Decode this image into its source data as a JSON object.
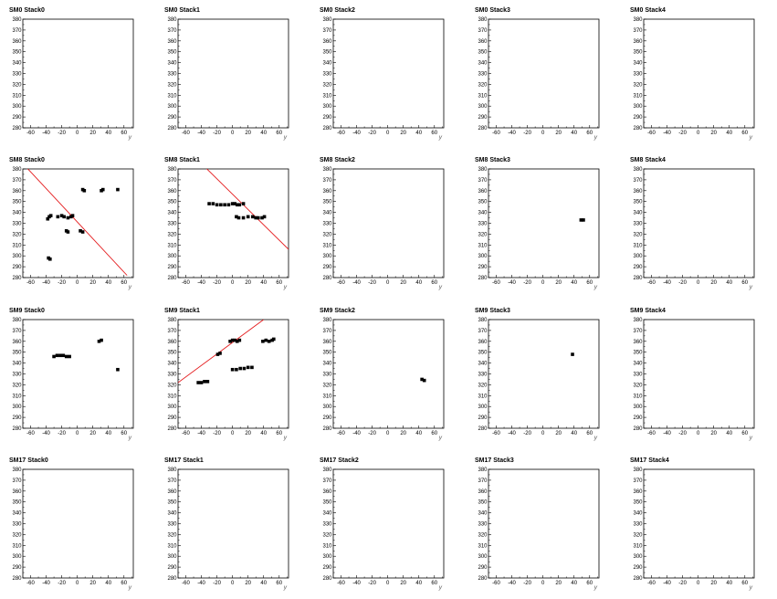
{
  "chart_data": {
    "type": "scatter",
    "xlabel": "y",
    "ylabel": "",
    "xlim": [
      -70,
      72
    ],
    "ylim": [
      280,
      380
    ],
    "xticks": [
      -60,
      -40,
      -20,
      0,
      20,
      40,
      60
    ],
    "yticks": [
      280,
      290,
      300,
      310,
      320,
      330,
      340,
      350,
      360,
      370,
      380
    ],
    "grid": false,
    "panels": [
      {
        "title": "SM0 Stack0",
        "points": [],
        "lines": []
      },
      {
        "title": "SM0 Stack1",
        "points": [],
        "lines": []
      },
      {
        "title": "SM0 Stack2",
        "points": [],
        "lines": []
      },
      {
        "title": "SM0 Stack3",
        "points": [],
        "lines": []
      },
      {
        "title": "SM0 Stack4",
        "points": [],
        "lines": []
      },
      {
        "title": "SM8 Stack0",
        "points": [
          [
            7,
            361
          ],
          [
            9,
            360
          ],
          [
            31,
            360
          ],
          [
            33,
            361
          ],
          [
            52,
            361
          ],
          [
            -38,
            334
          ],
          [
            -36,
            336
          ],
          [
            -34,
            337
          ],
          [
            -25,
            336
          ],
          [
            -20,
            337
          ],
          [
            -17,
            336
          ],
          [
            -12,
            335
          ],
          [
            -8,
            336
          ],
          [
            -6,
            337
          ],
          [
            -14,
            323
          ],
          [
            -12,
            322
          ],
          [
            4,
            323
          ],
          [
            7,
            322
          ],
          [
            -37,
            298
          ],
          [
            -35,
            297
          ]
        ],
        "lines": [
          [
            -70,
            385,
            64,
            282
          ]
        ]
      },
      {
        "title": "SM8 Stack1",
        "points": [
          [
            -30,
            348
          ],
          [
            -25,
            348
          ],
          [
            -20,
            347
          ],
          [
            -15,
            347
          ],
          [
            -10,
            347
          ],
          [
            -5,
            347
          ],
          [
            0,
            348
          ],
          [
            3,
            348
          ],
          [
            6,
            347
          ],
          [
            9,
            347
          ],
          [
            14,
            348
          ],
          [
            5,
            336
          ],
          [
            8,
            335
          ],
          [
            14,
            335
          ],
          [
            20,
            336
          ],
          [
            26,
            336
          ],
          [
            30,
            335
          ],
          [
            33,
            335
          ],
          [
            38,
            335
          ],
          [
            41,
            336
          ]
        ],
        "lines": [
          [
            -40,
            385,
            72,
            306
          ]
        ]
      },
      {
        "title": "SM8 Stack2",
        "points": [],
        "lines": []
      },
      {
        "title": "SM8 Stack3",
        "points": [
          [
            49,
            333
          ],
          [
            52,
            333
          ]
        ],
        "lines": []
      },
      {
        "title": "SM8 Stack4",
        "points": [],
        "lines": []
      },
      {
        "title": "SM9 Stack0",
        "points": [
          [
            -30,
            346
          ],
          [
            -26,
            347
          ],
          [
            -22,
            347
          ],
          [
            -18,
            347
          ],
          [
            -14,
            346
          ],
          [
            -10,
            346
          ],
          [
            28,
            360
          ],
          [
            31,
            361
          ],
          [
            52,
            334
          ]
        ],
        "lines": []
      },
      {
        "title": "SM9 Stack1",
        "points": [
          [
            -44,
            322
          ],
          [
            -40,
            322
          ],
          [
            -36,
            323
          ],
          [
            -32,
            323
          ],
          [
            -19,
            348
          ],
          [
            -16,
            349
          ],
          [
            -3,
            360
          ],
          [
            0,
            361
          ],
          [
            3,
            361
          ],
          [
            6,
            360
          ],
          [
            9,
            361
          ],
          [
            0,
            334
          ],
          [
            5,
            334
          ],
          [
            10,
            335
          ],
          [
            15,
            335
          ],
          [
            20,
            336
          ],
          [
            25,
            336
          ],
          [
            39,
            360
          ],
          [
            43,
            361
          ],
          [
            47,
            360
          ],
          [
            51,
            361
          ],
          [
            53,
            362
          ]
        ],
        "lines": [
          [
            -70,
            322,
            40,
            380
          ]
        ]
      },
      {
        "title": "SM9 Stack2",
        "points": [
          [
            44,
            325
          ],
          [
            47,
            324
          ]
        ],
        "lines": []
      },
      {
        "title": "SM9 Stack3",
        "points": [
          [
            38,
            348
          ]
        ],
        "lines": []
      },
      {
        "title": "SM9 Stack4",
        "points": [],
        "lines": []
      },
      {
        "title": "SM17 Stack0",
        "points": [],
        "lines": []
      },
      {
        "title": "SM17 Stack1",
        "points": [],
        "lines": []
      },
      {
        "title": "SM17 Stack2",
        "points": [],
        "lines": []
      },
      {
        "title": "SM17 Stack3",
        "points": [],
        "lines": []
      },
      {
        "title": "SM17 Stack4",
        "points": [],
        "lines": []
      }
    ]
  },
  "colors": {
    "frame": "#000000",
    "points": "#000000",
    "fit_line": "#e41a1c",
    "background": "#ffffff"
  }
}
